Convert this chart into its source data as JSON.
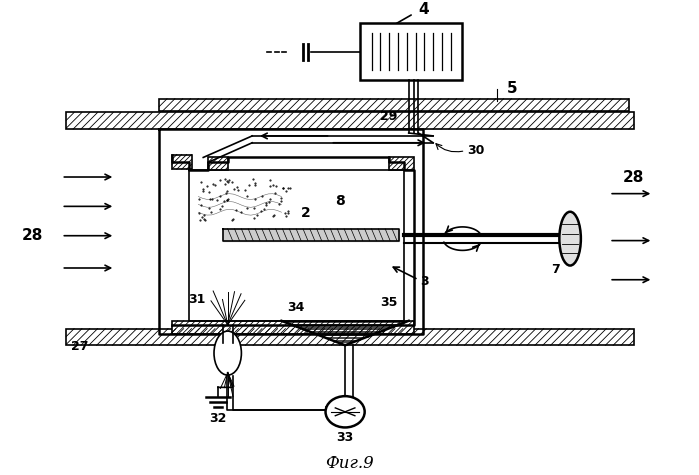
{
  "title": "Фиг.9",
  "bg": "#ffffff",
  "lw": 1.2,
  "lw2": 1.8
}
